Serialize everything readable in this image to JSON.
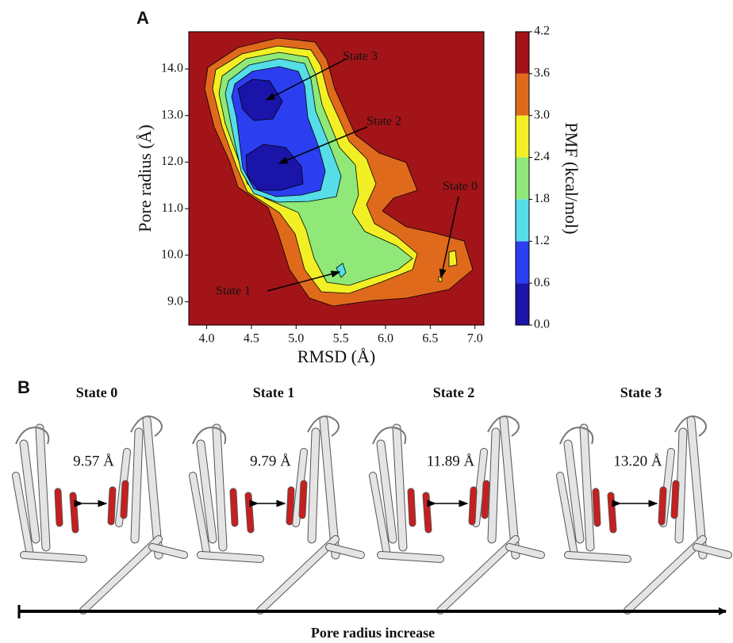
{
  "figure": {
    "panel_labels": [
      "A",
      "B"
    ],
    "chart_data": {
      "type": "contour",
      "xlabel": "RMSD (Å)",
      "ylabel": "Pore radius (Å)",
      "xlim": [
        3.8,
        7.1
      ],
      "ylim": [
        8.5,
        14.8
      ],
      "xticks": [
        {
          "value": 4,
          "label": "4.0"
        },
        4.5,
        {
          "value": 5,
          "label": "5.0"
        },
        5.5,
        {
          "value": 6,
          "label": "6.0"
        },
        6.5,
        {
          "value": 7,
          "label": "7.0"
        }
      ],
      "yticks": [
        {
          "value": 9,
          "label": "9.0"
        },
        {
          "value": 10,
          "label": "10.0"
        },
        {
          "value": 11,
          "label": "11.0"
        },
        {
          "value": 12,
          "label": "12.0"
        },
        {
          "value": 13,
          "label": "13.0"
        },
        {
          "value": 14,
          "label": "14.0"
        }
      ],
      "colorbar": {
        "label": "PMF (kcal/mol)",
        "lim": [
          0,
          4.2
        ],
        "ticks": [
          {
            "value": 0,
            "label": "0.0"
          },
          0.6,
          1.2,
          1.8,
          2.4,
          {
            "value": 3,
            "label": "3.0"
          },
          3.6,
          4.2
        ],
        "colors": [
          "#1a14a8",
          "#2b3ef0",
          "#55dde8",
          "#8fe878",
          "#f2f024",
          "#e06a1c",
          "#a31418"
        ]
      },
      "annotations": [
        "State 3",
        "State 2",
        "State 0",
        "State 1"
      ]
    },
    "states": [
      {
        "title": "State 0",
        "distance": "9.57 Å"
      },
      {
        "title": "State 1",
        "distance": "9.79 Å"
      },
      {
        "title": "State 2",
        "distance": "11.89 Å"
      },
      {
        "title": "State 3",
        "distance": "13.20 Å"
      }
    ],
    "arrow_label": "Pore radius increase"
  }
}
